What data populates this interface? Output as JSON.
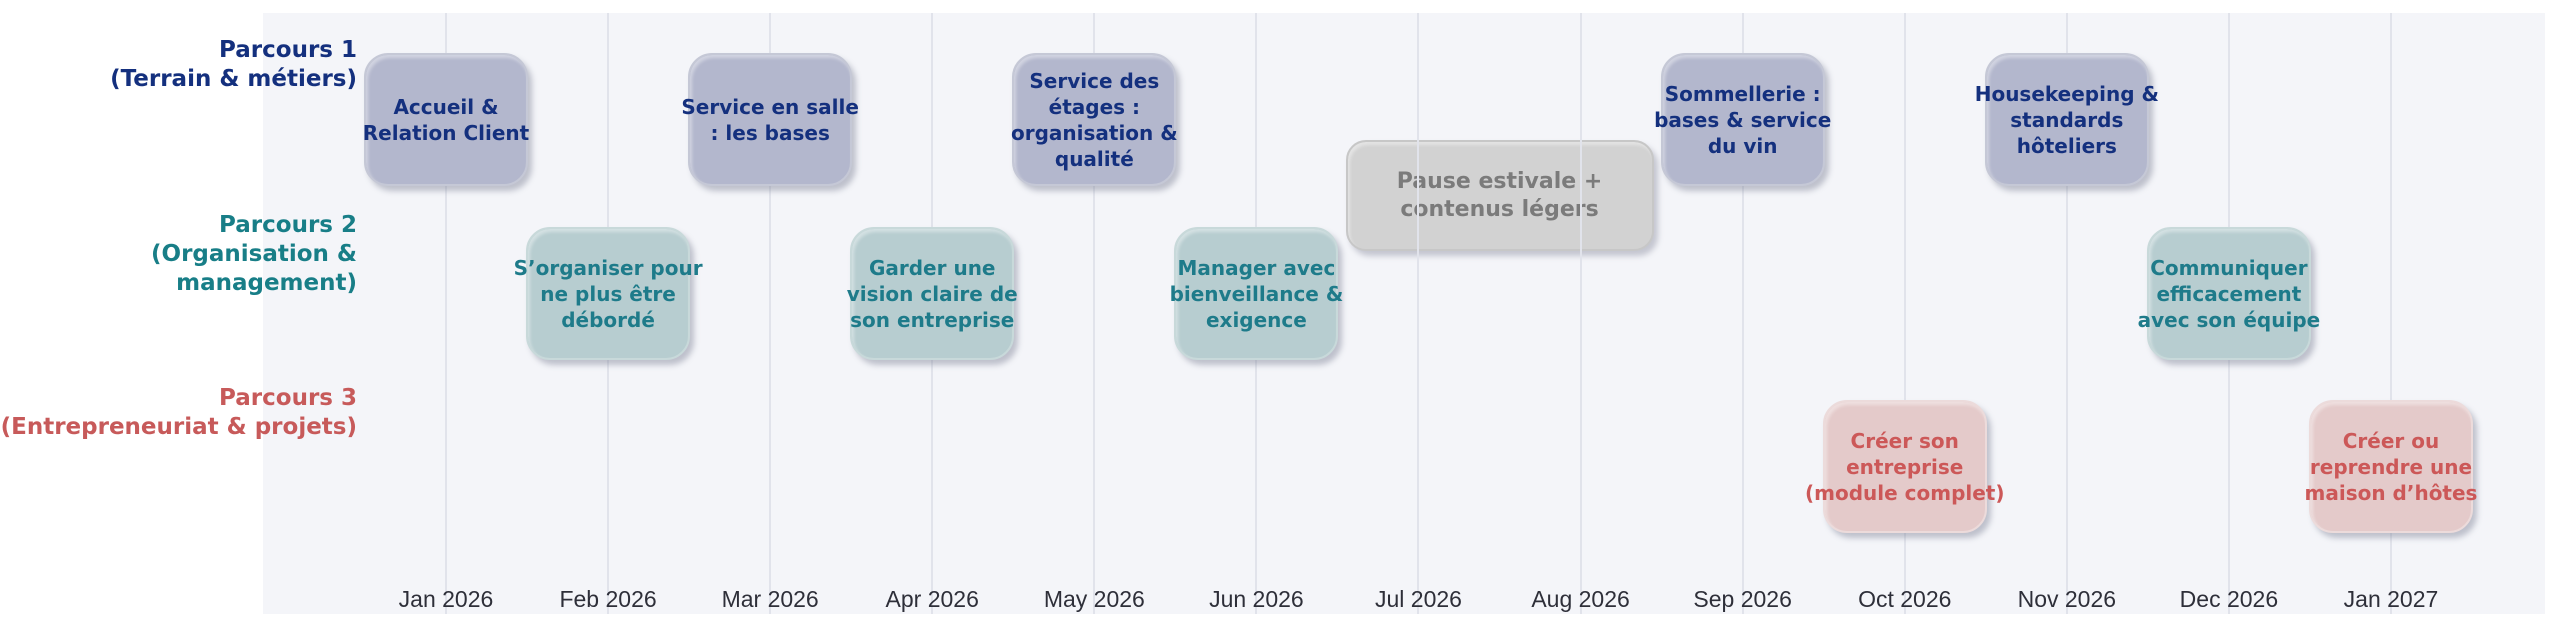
{
  "chart_data": {
    "type": "gantt_timeline",
    "title": "",
    "page_background": "#ffffff",
    "plot_background": "#f4f5f9",
    "gridline_color": "#e1e3eb",
    "x_axis": {
      "ticks": [
        "Jan 2026",
        "Feb 2026",
        "Mar 2026",
        "Apr 2026",
        "May 2026",
        "Jun 2026",
        "Jul 2026",
        "Aug 2026",
        "Sep 2026",
        "Oct 2026",
        "Nov 2026",
        "Dec 2026",
        "Jan 2027"
      ],
      "tick_color": "#2e2f39"
    },
    "series": [
      {
        "name": "Parcours 1\n(Terrain & métiers)",
        "label_color": "#14307e",
        "box_fill": "#b3b7cd",
        "box_border": "#c5c8d6",
        "text_color": "#14307e",
        "items": [
          {
            "label": "Accueil &\nRelation Client",
            "month": "Jan 2026"
          },
          {
            "label": "Service en salle\n: les bases",
            "month": "Mar 2026"
          },
          {
            "label": "Service des\nétages :\norganisation &\nqualité",
            "month": "May 2026"
          },
          {
            "label": "Sommellerie :\nbases & service\ndu vin",
            "month": "Sep 2026"
          },
          {
            "label": "Housekeeping &\nstandards\nhôteliers",
            "month": "Nov 2026"
          }
        ]
      },
      {
        "name": "Parcours 2\n(Organisation & management)",
        "label_color": "#187e87",
        "box_fill": "#b7cdd0",
        "box_border": "#c8d9da",
        "text_color": "#1e7b8a",
        "items": [
          {
            "label": "S’organiser pour\nne plus être\ndébordé",
            "month": "Feb 2026"
          },
          {
            "label": "Garder une\nvision claire de\nson entreprise",
            "month": "Apr 2026"
          },
          {
            "label": "Manager avec\nbienveillance &\nexigence",
            "month": "Jun 2026"
          },
          {
            "label": "Communiquer\nefficacement\navec son équipe",
            "month": "Dec 2026"
          }
        ]
      },
      {
        "name": "Parcours 3\n(Entrepreneuriat & projets)",
        "label_color": "#c75a5a",
        "box_fill": "#e4caca",
        "box_border": "#ecdbdb",
        "text_color": "#cc5858",
        "items": [
          {
            "label": "Créer son\nentreprise\n(module complet)",
            "month": "Oct 2026"
          },
          {
            "label": "Créer ou\nreprendre une\nmaison d’hôtes",
            "month": "Jan 2027"
          }
        ]
      }
    ],
    "annotations": [
      {
        "label": "Pause estivale +\ncontenus légers",
        "start_month": "Jul 2026",
        "end_month": "Aug 2026",
        "box_fill": "#d2d2d2",
        "box_border": "#c7c7c7",
        "text_color": "#7b7b7b"
      }
    ]
  }
}
